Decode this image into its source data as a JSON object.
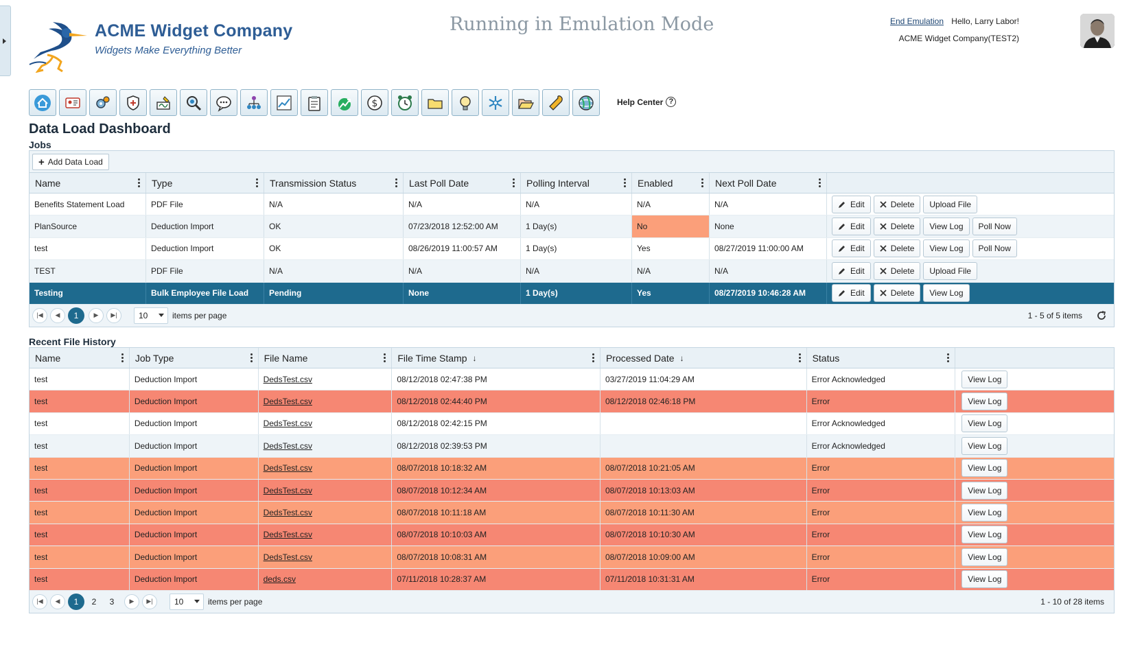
{
  "header": {
    "brand_name": "ACME Widget Company",
    "brand_tagline": "Widgets Make Everything Better",
    "emulation_banner": "Running in Emulation Mode",
    "end_emulation": "End Emulation",
    "greeting": "Hello, Larry Labor!",
    "company": "ACME Widget Company(TEST2)"
  },
  "toolbar": {
    "icons": [
      "home-icon",
      "id-card-icon",
      "gears-icon",
      "shield-icon",
      "signature-icon",
      "search-icon",
      "chat-icon",
      "org-chart-icon",
      "line-chart-icon",
      "clipboard-icon",
      "growth-icon",
      "dollar-icon",
      "alarm-clock-icon",
      "folder-icon",
      "lightbulb-icon",
      "snowflake-icon",
      "folder-open-icon",
      "wrench-icon",
      "globe-icon"
    ],
    "help_label": "Help Center",
    "help_glyph": "?"
  },
  "page_title": "Data Load Dashboard",
  "jobs": {
    "section_label": "Jobs",
    "add_button": "Add Data Load",
    "columns": [
      "Name",
      "Type",
      "Transmission Status",
      "Last Poll Date",
      "Polling Interval",
      "Enabled",
      "Next Poll Date"
    ],
    "rows": [
      {
        "name": "Benefits Statement Load",
        "type": "PDF File",
        "status": "N/A",
        "last_poll": "N/A",
        "interval": "N/A",
        "enabled": "N/A",
        "next_poll": "N/A",
        "actions": [
          "Edit",
          "Delete",
          "Upload File"
        ]
      },
      {
        "name": "PlanSource",
        "type": "Deduction Import",
        "status": "OK",
        "last_poll": "07/23/2018 12:52:00 AM",
        "interval": "1 Day(s)",
        "enabled": "No",
        "next_poll": "None",
        "actions": [
          "Edit",
          "Delete",
          "View Log",
          "Poll Now"
        ]
      },
      {
        "name": "test",
        "type": "Deduction Import",
        "status": "OK",
        "last_poll": "08/26/2019 11:00:57 AM",
        "interval": "1 Day(s)",
        "enabled": "Yes",
        "next_poll": "08/27/2019 11:00:00 AM",
        "actions": [
          "Edit",
          "Delete",
          "View Log",
          "Poll Now"
        ]
      },
      {
        "name": "TEST",
        "type": "PDF File",
        "status": "N/A",
        "last_poll": "N/A",
        "interval": "N/A",
        "enabled": "N/A",
        "next_poll": "N/A",
        "actions": [
          "Edit",
          "Delete",
          "Upload File"
        ]
      },
      {
        "name": "Testing",
        "type": "Bulk Employee File Load",
        "status": "Pending",
        "last_poll": "None",
        "interval": "1 Day(s)",
        "enabled": "Yes",
        "next_poll": "08/27/2019 10:46:28 AM",
        "actions": [
          "Edit",
          "Delete",
          "View Log"
        ]
      }
    ],
    "pager": {
      "pages": [
        "1"
      ],
      "current": "1",
      "page_size": "10",
      "items_per_page_label": "items per page",
      "info": "1 - 5 of 5 items"
    }
  },
  "history": {
    "section_label": "Recent File History",
    "columns": [
      "Name",
      "Job Type",
      "File Name",
      "File Time Stamp",
      "Processed Date",
      "Status"
    ],
    "sort_glyph": "↓",
    "action_label": "View Log",
    "rows": [
      {
        "name": "test",
        "job_type": "Deduction Import",
        "file": "DedsTest.csv",
        "stamp": "08/12/2018 02:47:38 PM",
        "processed": "03/27/2019 11:04:29 AM",
        "status": "Error Acknowledged",
        "tone": "plain"
      },
      {
        "name": "test",
        "job_type": "Deduction Import",
        "file": "DedsTest.csv",
        "stamp": "08/12/2018 02:44:40 PM",
        "processed": "08/12/2018 02:46:18 PM",
        "status": "Error",
        "tone": "red"
      },
      {
        "name": "test",
        "job_type": "Deduction Import",
        "file": "DedsTest.csv",
        "stamp": "08/12/2018 02:42:15 PM",
        "processed": "",
        "status": "Error Acknowledged",
        "tone": "plain"
      },
      {
        "name": "test",
        "job_type": "Deduction Import",
        "file": "DedsTest.csv",
        "stamp": "08/12/2018 02:39:53 PM",
        "processed": "",
        "status": "Error Acknowledged",
        "tone": "alt"
      },
      {
        "name": "test",
        "job_type": "Deduction Import",
        "file": "DedsTest.csv",
        "stamp": "08/07/2018 10:18:32 AM",
        "processed": "08/07/2018 10:21:05 AM",
        "status": "Error",
        "tone": "orange"
      },
      {
        "name": "test",
        "job_type": "Deduction Import",
        "file": "DedsTest.csv",
        "stamp": "08/07/2018 10:12:34 AM",
        "processed": "08/07/2018 10:13:03 AM",
        "status": "Error",
        "tone": "red"
      },
      {
        "name": "test",
        "job_type": "Deduction Import",
        "file": "DedsTest.csv",
        "stamp": "08/07/2018 10:11:18 AM",
        "processed": "08/07/2018 10:11:30 AM",
        "status": "Error",
        "tone": "orange"
      },
      {
        "name": "test",
        "job_type": "Deduction Import",
        "file": "DedsTest.csv",
        "stamp": "08/07/2018 10:10:03 AM",
        "processed": "08/07/2018 10:10:30 AM",
        "status": "Error",
        "tone": "red"
      },
      {
        "name": "test",
        "job_type": "Deduction Import",
        "file": "DedsTest.csv",
        "stamp": "08/07/2018 10:08:31 AM",
        "processed": "08/07/2018 10:09:00 AM",
        "status": "Error",
        "tone": "orange"
      },
      {
        "name": "test",
        "job_type": "Deduction Import",
        "file": "deds.csv",
        "stamp": "07/11/2018 10:28:37 AM",
        "processed": "07/11/2018 10:31:31 AM",
        "status": "Error",
        "tone": "red"
      }
    ],
    "pager": {
      "pages": [
        "1",
        "2",
        "3"
      ],
      "current": "1",
      "page_size": "10",
      "items_per_page_label": "items per page",
      "info": "1 - 10 of 28 items"
    }
  },
  "colors": {
    "accent": "#1e6a8e",
    "brand": "#2e5d95",
    "error_row": "#f68773",
    "warning_row": "#fb9f7a"
  }
}
